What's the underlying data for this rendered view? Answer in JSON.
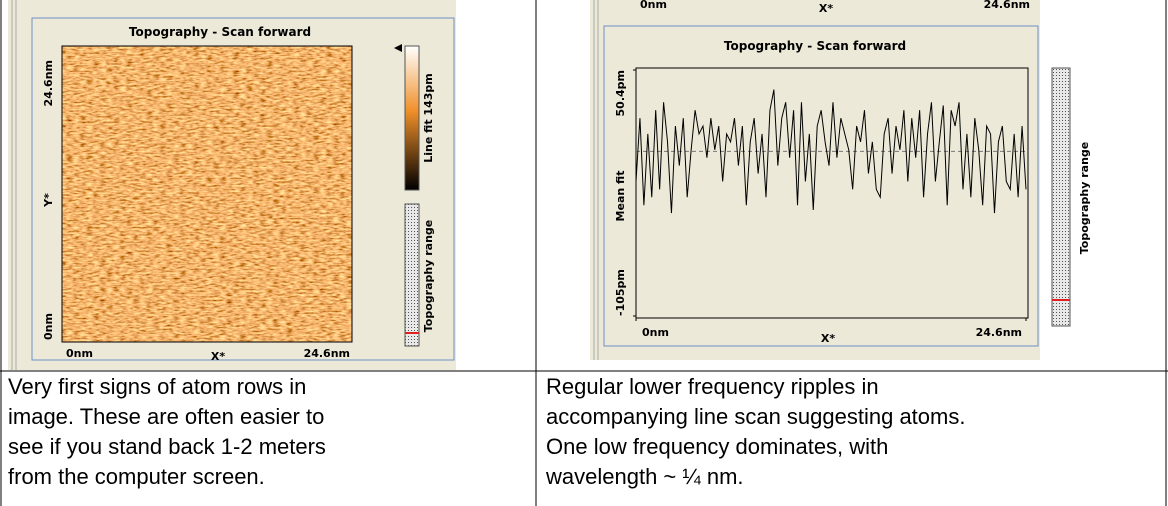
{
  "left_panel": {
    "title": "Topography - Scan forward",
    "y_top_label": "24.6nm",
    "y_axis_label": "Y*",
    "y_bottom_label": "0nm",
    "x_left_label": "0nm",
    "x_axis_label": "X*",
    "x_right_label": "24.6nm",
    "colorbar_label": "Line fit 143pm",
    "range_label": "Topography range"
  },
  "right_panel": {
    "cut_labels": [
      "0nm",
      "X*",
      "24.6nm"
    ],
    "range_label": "Topography range",
    "chart": {
      "type": "line",
      "title": "Topography - Scan forward",
      "y_label": "Mean fit",
      "x_label": "X*",
      "xlim": [
        0,
        24.6
      ],
      "xticks": [
        {
          "value": 0,
          "label": "0nm"
        },
        {
          "value": 24.6,
          "label": "24.6nm"
        }
      ],
      "ylim": [
        -105,
        50.4
      ],
      "yticks": [
        {
          "value": 50.4,
          "label": "50.4pm"
        },
        {
          "value": -105,
          "label": "-105pm"
        }
      ],
      "mean_value": -1,
      "color": "#000000",
      "values": [
        -20,
        20,
        -35,
        10,
        -30,
        25,
        -25,
        30,
        5,
        -40,
        15,
        -10,
        20,
        -30,
        0,
        25,
        10,
        15,
        -5,
        20,
        0,
        15,
        -20,
        10,
        5,
        20,
        -10,
        15,
        -35,
        5,
        20,
        -15,
        10,
        -30,
        25,
        38,
        -10,
        20,
        30,
        -5,
        25,
        -35,
        30,
        -20,
        10,
        -38,
        15,
        25,
        5,
        -10,
        30,
        -5,
        20,
        10,
        0,
        -25,
        15,
        5,
        25,
        -15,
        5,
        -25,
        -30,
        10,
        20,
        -15,
        15,
        0,
        25,
        -20,
        20,
        -5,
        25,
        -30,
        10,
        30,
        -20,
        5,
        28,
        -35,
        25,
        15,
        30,
        -25,
        10,
        -30,
        20,
        0,
        -35,
        15,
        10,
        -40,
        5,
        15,
        -20,
        -25,
        10,
        -30,
        15,
        -25
      ]
    }
  },
  "captions": [
    [
      "Very first signs of atom rows in",
      "image.  These are often easier to",
      "see if you stand back 1-2 meters",
      "from the computer screen."
    ],
    [
      "Regular lower frequency ripples in",
      "accompanying line scan suggesting atoms.",
      "One low frequency dominates, with",
      "wavelength ~ ¼ nm."
    ]
  ]
}
